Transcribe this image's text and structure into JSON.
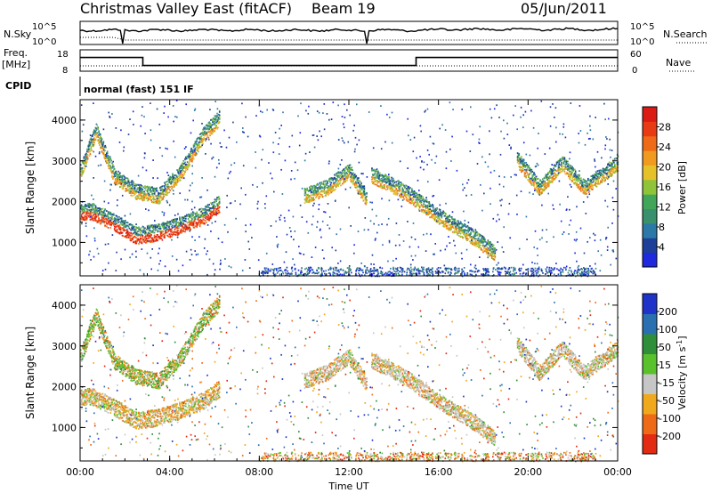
{
  "header": {
    "title": "Christmas Valley East (fitACF)",
    "beam": "Beam 19",
    "date": "05/Jun/2011"
  },
  "noise_panel": {
    "left_label": "N.Sky",
    "right_label": "N.Search",
    "left_ticks": [
      "10^5",
      "10^0"
    ],
    "right_ticks": [
      "10^5",
      "10^0"
    ]
  },
  "freq_panel": {
    "left_label_1": "Freq.",
    "left_label_2": "[MHz]",
    "right_label": "Nave",
    "left_ticks": [
      "18",
      "8"
    ],
    "right_ticks": [
      "60",
      "0"
    ]
  },
  "cpid": {
    "label": "CPID",
    "mode": "normal (fast) 151 IF"
  },
  "power_panel": {
    "ylabel": "Slant Range [km]",
    "yticks": [
      "1000",
      "2000",
      "3000",
      "4000"
    ],
    "colorbar_label": "Power [dB]",
    "colorbar_ticks": [
      "4",
      "8",
      "12",
      "16",
      "20",
      "24",
      "28"
    ],
    "colors": [
      "#1f2adf",
      "#1d3f9a",
      "#2c78a6",
      "#3a8f6c",
      "#41a55a",
      "#8fc33a",
      "#e6c22a",
      "#f09a1f",
      "#ee6a17",
      "#e83b14",
      "#dc1a14"
    ]
  },
  "velocity_panel": {
    "ylabel": "Slant Range [km]",
    "yticks": [
      "1000",
      "2000",
      "3000",
      "4000"
    ],
    "colorbar_label": "Velocity [m s^-1]",
    "colorbar_ticks": [
      "200",
      "100",
      "50",
      "15",
      "-15",
      "-50",
      "-100",
      "-200"
    ],
    "colors": [
      "#1f33c8",
      "#2a6fb0",
      "#2f8e3a",
      "#59c12c",
      "#c6c6c6",
      "#f0a81c",
      "#ee6a17",
      "#e32a12"
    ]
  },
  "xaxis": {
    "label": "Time UT",
    "ticks": [
      "00:00",
      "04:00",
      "08:00",
      "12:00",
      "16:00",
      "20:00",
      "00:00"
    ]
  },
  "chart_data": {
    "type": "heatmap",
    "title": "Christmas Valley East (fitACF)",
    "xlabel": "Time UT",
    "ylabel": "Slant Range [km]",
    "xlim": [
      "00:00",
      "24:00"
    ],
    "ylim": [
      180,
      4500
    ],
    "power_scale_db": [
      0,
      30
    ],
    "velocity_scale_ms": [
      -250,
      250
    ],
    "scatter_features": [
      {
        "name": "lower band",
        "time_h": [
          0.0,
          0.5,
          1.5,
          2.5,
          3.5,
          4.5,
          5.5,
          6.2
        ],
        "range_km": [
          1700,
          1720,
          1450,
          1120,
          1200,
          1380,
          1600,
          1900
        ]
      },
      {
        "name": "upper band",
        "time_h": [
          0.0,
          0.7,
          1.5,
          2.5,
          3.5,
          4.5,
          5.5,
          6.2
        ],
        "range_km": [
          2700,
          3700,
          2600,
          2200,
          2100,
          2700,
          3600,
          4000
        ]
      },
      {
        "name": "noon arc",
        "time_h": [
          10.0,
          11.0,
          12.0,
          12.8
        ],
        "range_km": [
          2100,
          2300,
          2700,
          2000
        ]
      },
      {
        "name": "afternoon band",
        "time_h": [
          13.0,
          14.5,
          16.0,
          17.5,
          18.5
        ],
        "range_km": [
          2600,
          2200,
          1600,
          1100,
          700
        ]
      },
      {
        "name": "evening arcs",
        "time_h": [
          19.5,
          20.5,
          21.5,
          22.5,
          24.0
        ],
        "range_km": [
          3000,
          2300,
          2900,
          2300,
          2900
        ]
      }
    ],
    "cpid_nave": {
      "freq_mhz": [
        16,
        16,
        11,
        11,
        16,
        16
      ],
      "time_h": [
        0,
        2.8,
        2.8,
        15.0,
        15.0,
        24
      ]
    }
  }
}
